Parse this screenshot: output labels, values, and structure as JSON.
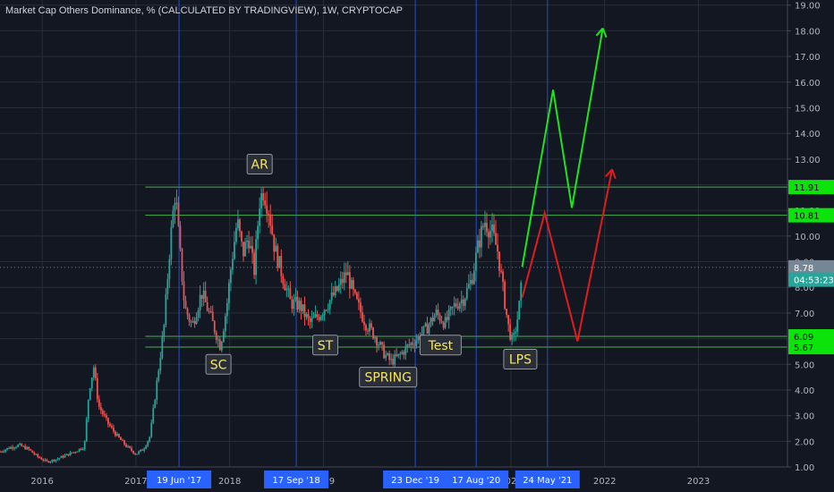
{
  "header": {
    "title": "Market Cap Others Dominance, % (CALCULATED BY TRADINGVIEW), 1W, CRYPTOCAP"
  },
  "colors": {
    "background": "#131722",
    "grid": "#2a2e39",
    "axis_text": "#b2b5be",
    "candle_up": "#26a69a",
    "candle_down": "#ef5350",
    "level_line": "#4caf50",
    "vertical_marker": "#2962ff",
    "projection_green": "#21e21e",
    "projection_red": "#e01c1c",
    "label_box": "#2a2e39",
    "label_text": "#f5e663"
  },
  "chart_data": {
    "type": "candlestick",
    "title": "Market Cap Others Dominance, % (CALCULATED BY TRADINGVIEW), 1W, CRYPTOCAP",
    "ylim": [
      1.0,
      19.2
    ],
    "y_ticks": [
      1.0,
      2.0,
      3.0,
      4.0,
      5.0,
      6.0,
      7.0,
      8.0,
      9.0,
      10.0,
      11.0,
      12.0,
      13.0,
      14.0,
      15.0,
      16.0,
      17.0,
      18.0,
      19.0
    ],
    "y_tick_labels": [
      "1.00",
      "2.00",
      "3.00",
      "4.00",
      "5.00",
      "6.00",
      "7.00",
      "8.00",
      "9.00",
      "10.00",
      "11.00",
      "12.00",
      "13.00",
      "14.00",
      "15.00",
      "16.00",
      "17.00",
      "18.00",
      "19.00"
    ],
    "xlim": [
      2015.55,
      2023.95
    ],
    "x_ticks": [
      {
        "x": 2016.0,
        "label": "2016"
      },
      {
        "x": 2017.0,
        "label": "2017"
      },
      {
        "x": 2018.0,
        "label": "2018"
      },
      {
        "x": 2019.0,
        "label": "2019"
      },
      {
        "x": 2021.0,
        "label": "2021"
      },
      {
        "x": 2022.0,
        "label": "2022"
      },
      {
        "x": 2023.0,
        "label": "2023"
      }
    ],
    "price_path": [
      [
        2015.55,
        1.6
      ],
      [
        2015.65,
        1.75
      ],
      [
        2015.75,
        1.85
      ],
      [
        2015.85,
        1.7
      ],
      [
        2015.95,
        1.4
      ],
      [
        2016.05,
        1.2
      ],
      [
        2016.15,
        1.3
      ],
      [
        2016.25,
        1.45
      ],
      [
        2016.35,
        1.6
      ],
      [
        2016.45,
        1.8
      ],
      [
        2016.5,
        4.0
      ],
      [
        2016.55,
        4.9
      ],
      [
        2016.6,
        3.4
      ],
      [
        2016.7,
        2.7
      ],
      [
        2016.8,
        2.2
      ],
      [
        2016.9,
        1.8
      ],
      [
        2017.0,
        1.5
      ],
      [
        2017.08,
        1.7
      ],
      [
        2017.15,
        2.2
      ],
      [
        2017.22,
        4.2
      ],
      [
        2017.3,
        6.5
      ],
      [
        2017.36,
        9.5
      ],
      [
        2017.42,
        11.8
      ],
      [
        2017.46,
        9.8
      ],
      [
        2017.52,
        7.2
      ],
      [
        2017.6,
        6.5
      ],
      [
        2017.7,
        7.8
      ],
      [
        2017.8,
        6.8
      ],
      [
        2017.9,
        5.7
      ],
      [
        2017.97,
        7.3
      ],
      [
        2018.02,
        9.0
      ],
      [
        2018.08,
        10.6
      ],
      [
        2018.14,
        9.3
      ],
      [
        2018.2,
        10.0
      ],
      [
        2018.26,
        8.6
      ],
      [
        2018.32,
        11.4
      ],
      [
        2018.36,
        11.8
      ],
      [
        2018.42,
        11.0
      ],
      [
        2018.48,
        9.5
      ],
      [
        2018.56,
        8.5
      ],
      [
        2018.65,
        7.4
      ],
      [
        2018.75,
        7.3
      ],
      [
        2018.85,
        6.6
      ],
      [
        2018.95,
        6.9
      ],
      [
        2019.05,
        7.4
      ],
      [
        2019.15,
        7.9
      ],
      [
        2019.25,
        8.6
      ],
      [
        2019.33,
        7.6
      ],
      [
        2019.45,
        6.6
      ],
      [
        2019.55,
        6.1
      ],
      [
        2019.65,
        5.4
      ],
      [
        2019.72,
        5.1
      ],
      [
        2019.8,
        5.3
      ],
      [
        2019.9,
        5.7
      ],
      [
        2020.0,
        6.0
      ],
      [
        2020.1,
        6.4
      ],
      [
        2020.2,
        7.0
      ],
      [
        2020.3,
        6.6
      ],
      [
        2020.4,
        7.3
      ],
      [
        2020.5,
        7.6
      ],
      [
        2020.58,
        8.3
      ],
      [
        2020.66,
        9.8
      ],
      [
        2020.72,
        10.6
      ],
      [
        2020.8,
        10.1
      ],
      [
        2020.86,
        9.4
      ],
      [
        2020.92,
        7.8
      ],
      [
        2020.97,
        6.5
      ],
      [
        2021.02,
        5.8
      ],
      [
        2021.08,
        7.0
      ],
      [
        2021.12,
        8.3
      ]
    ],
    "horizontal_levels": [
      {
        "value": 11.91,
        "label": "11.91",
        "badge": "#0be30b"
      },
      {
        "value": 10.81,
        "label": "10.81",
        "badge": "#0be30b"
      },
      {
        "value": 6.09,
        "label": "6.09",
        "badge": "#0be30b"
      },
      {
        "value": 5.67,
        "label": "5.67",
        "badge": "#0be30b"
      }
    ],
    "current_price": {
      "value": 8.78,
      "label": "8.78",
      "badge": "#758696"
    },
    "countdown": {
      "value": 8.3,
      "label": "04:53:23",
      "badge": "#26a69a"
    },
    "vertical_markers": [
      {
        "x": 2017.46,
        "label": "19 Jun '17"
      },
      {
        "x": 2018.71,
        "label": "17 Sep '18"
      },
      {
        "x": 2019.98,
        "label": "23 Dec '19"
      },
      {
        "x": 2020.63,
        "label": "17 Aug '20"
      },
      {
        "x": 2021.39,
        "label": "24 May '21"
      }
    ],
    "annotations": [
      {
        "text": "AR",
        "x": 2018.32,
        "y": 12.8
      },
      {
        "text": "SC",
        "x": 2017.88,
        "y": 5.0
      },
      {
        "text": "ST",
        "x": 2019.02,
        "y": 5.75
      },
      {
        "text": "SPRING",
        "x": 2019.69,
        "y": 4.5
      },
      {
        "text": "Test",
        "x": 2020.25,
        "y": 5.75
      },
      {
        "text": "LPS",
        "x": 2021.1,
        "y": 5.2
      }
    ],
    "projections": [
      {
        "name": "green",
        "points": [
          [
            2021.12,
            8.8
          ],
          [
            2021.45,
            15.7
          ],
          [
            2021.65,
            11.1
          ],
          [
            2021.98,
            18.1
          ]
        ]
      },
      {
        "name": "red",
        "points": [
          [
            2021.12,
            7.6
          ],
          [
            2021.36,
            10.9
          ],
          [
            2021.71,
            5.9
          ],
          [
            2022.08,
            12.6
          ]
        ]
      }
    ]
  }
}
